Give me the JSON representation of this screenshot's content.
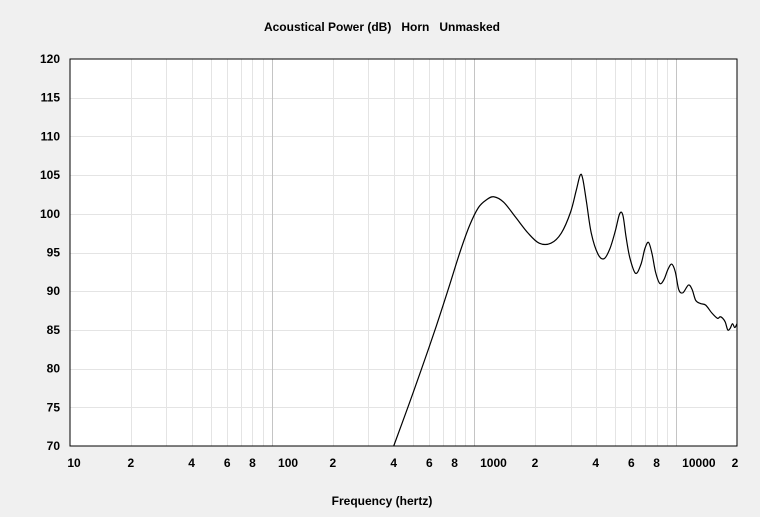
{
  "chart_data": {
    "type": "line",
    "title": "Acoustical Power (dB)   Horn   Unmasked",
    "xlabel": "Frequency (hertz)",
    "ylabel": "",
    "x_scale": "log",
    "xlim": [
      10,
      20000
    ],
    "ylim": [
      70,
      120
    ],
    "y_ticks": [
      70,
      75,
      80,
      85,
      90,
      95,
      100,
      105,
      110,
      115,
      120
    ],
    "x_ticks": [
      {
        "value": 10,
        "label": "10"
      },
      {
        "value": 20,
        "label": "2"
      },
      {
        "value": 40,
        "label": "4"
      },
      {
        "value": 60,
        "label": "6"
      },
      {
        "value": 80,
        "label": "8"
      },
      {
        "value": 100,
        "label": "100"
      },
      {
        "value": 200,
        "label": "2"
      },
      {
        "value": 400,
        "label": "4"
      },
      {
        "value": 600,
        "label": "6"
      },
      {
        "value": 800,
        "label": "8"
      },
      {
        "value": 1000,
        "label": "1000"
      },
      {
        "value": 2000,
        "label": "2"
      },
      {
        "value": 4000,
        "label": "4"
      },
      {
        "value": 6000,
        "label": "6"
      },
      {
        "value": 8000,
        "label": "8"
      },
      {
        "value": 10000,
        "label": "10000"
      },
      {
        "value": 20000,
        "label": "2"
      }
    ],
    "grid": true,
    "colors": {
      "background": "#f0f0f0",
      "plot_area": "#ffffff",
      "grid_minor": "#e4e4e4",
      "grid_major": "#c4c4c4",
      "line": "#000000"
    },
    "series": [
      {
        "name": "",
        "x": [
          400,
          470,
          550,
          650,
          750,
          850,
          950,
          1050,
          1150,
          1250,
          1400,
          1600,
          1850,
          2100,
          2400,
          2700,
          3000,
          3200,
          3350,
          3450,
          3600,
          3800,
          4100,
          4400,
          4700,
          5000,
          5250,
          5450,
          5650,
          5900,
          6300,
          6700,
          7000,
          7300,
          7600,
          7900,
          8300,
          8700,
          9100,
          9500,
          9900,
          10300,
          10800,
          11500,
          12000,
          12500,
          13200,
          14000,
          15000,
          16000,
          16500,
          17000,
          17500,
          18000,
          18500,
          19000,
          19500,
          20000
        ],
        "y": [
          70,
          75,
          80,
          85.5,
          90.5,
          95,
          98.5,
          100.8,
          101.8,
          102.2,
          101.5,
          99.6,
          97.5,
          96.2,
          96.2,
          97.5,
          100.2,
          103,
          105,
          104.5,
          101.5,
          97.5,
          94.8,
          94.2,
          95.5,
          97.8,
          100,
          99.8,
          97,
          94.3,
          92.3,
          93.5,
          95.5,
          96.3,
          94.8,
          92.5,
          91,
          91.5,
          92.8,
          93.5,
          92.5,
          90.2,
          89.8,
          90.8,
          90.2,
          88.8,
          88.4,
          88.2,
          87.2,
          86.5,
          86.7,
          86.5,
          86,
          85,
          85.2,
          85.8,
          85.3,
          85.8
        ]
      }
    ]
  }
}
